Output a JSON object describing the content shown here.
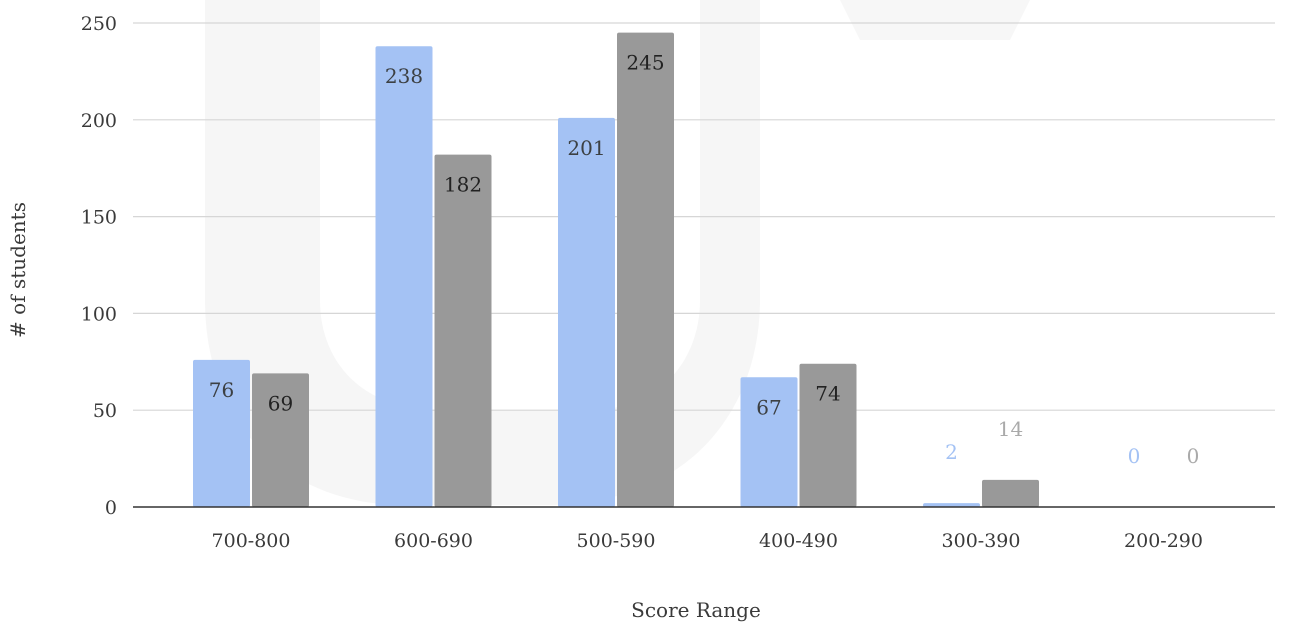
{
  "chart_data": {
    "type": "bar",
    "title": "",
    "xlabel": "Score Range",
    "ylabel": "# of students",
    "ylim": [
      0,
      250
    ],
    "yticks": [
      0,
      50,
      100,
      150,
      200,
      250
    ],
    "grid": true,
    "legend": "none",
    "categories": [
      "700-800",
      "600-690",
      "500-590",
      "400-490",
      "300-390",
      "200-290"
    ],
    "series": [
      {
        "color": "#a4c2f4",
        "label_color_inside": "#3c4043",
        "label_color_outside": "#a4c2f4",
        "values": [
          76,
          238,
          201,
          67,
          2,
          0
        ]
      },
      {
        "color": "#999999",
        "label_color_inside": "#222222",
        "label_color_outside": "#aaaaaa",
        "values": [
          69,
          182,
          245,
          74,
          14,
          0
        ]
      }
    ]
  }
}
